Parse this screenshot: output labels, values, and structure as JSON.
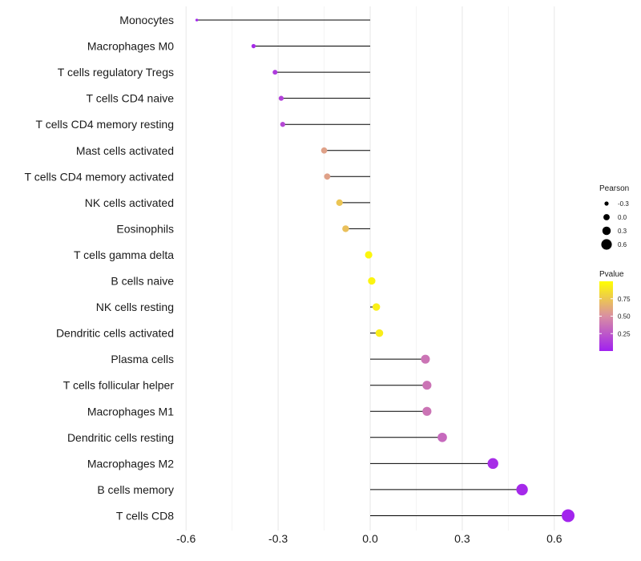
{
  "chart_data": {
    "type": "lollipop",
    "title": "",
    "xlabel": "",
    "ylabel": "",
    "xlim": [
      -0.6,
      0.65
    ],
    "x_ticks": [
      -0.6,
      -0.3,
      0.0,
      0.3,
      0.6
    ],
    "x_tick_labels": [
      "-0.6",
      "-0.3",
      "0.0",
      "0.3",
      "0.6"
    ],
    "categories": [
      "Monocytes",
      "Macrophages M0",
      "T cells regulatory  Tregs",
      "T cells CD4 naive",
      "T cells CD4 memory resting",
      "Mast cells activated",
      "T cells CD4 memory activated",
      "NK cells activated",
      "Eosinophils",
      "T cells gamma delta",
      "B cells naive",
      "NK cells resting",
      "Dendritic cells activated",
      "Plasma cells",
      "T cells follicular helper",
      "Macrophages M1",
      "Dendritic cells resting",
      "Macrophages M2",
      "B cells memory",
      "T cells CD8"
    ],
    "pearson": [
      -0.565,
      -0.38,
      -0.31,
      -0.29,
      -0.285,
      -0.15,
      -0.14,
      -0.1,
      -0.08,
      -0.005,
      0.005,
      0.02,
      0.03,
      0.18,
      0.185,
      0.185,
      0.235,
      0.4,
      0.495,
      0.645
    ],
    "pvalue": [
      0.02,
      0.05,
      0.12,
      0.15,
      0.18,
      0.58,
      0.58,
      0.74,
      0.72,
      0.96,
      0.95,
      0.93,
      0.92,
      0.38,
      0.38,
      0.38,
      0.33,
      0.06,
      0.04,
      0.02
    ],
    "size_legend": {
      "title": "Pearson",
      "values": [
        -0.3,
        0.0,
        0.3,
        0.6
      ],
      "labels": [
        "-0.3",
        "0.0",
        "0.3",
        "0.6"
      ]
    },
    "color_legend": {
      "title": "Pvalue",
      "range": [
        0.0,
        1.0
      ],
      "ticks": [
        0.25,
        0.5,
        0.75
      ],
      "labels": [
        "0.25",
        "0.50",
        "0.75"
      ],
      "low_color": "#a020f0",
      "mid_color": "#d98fa2",
      "high_color": "#ffff00"
    },
    "grid": true,
    "legend_position": "right"
  }
}
